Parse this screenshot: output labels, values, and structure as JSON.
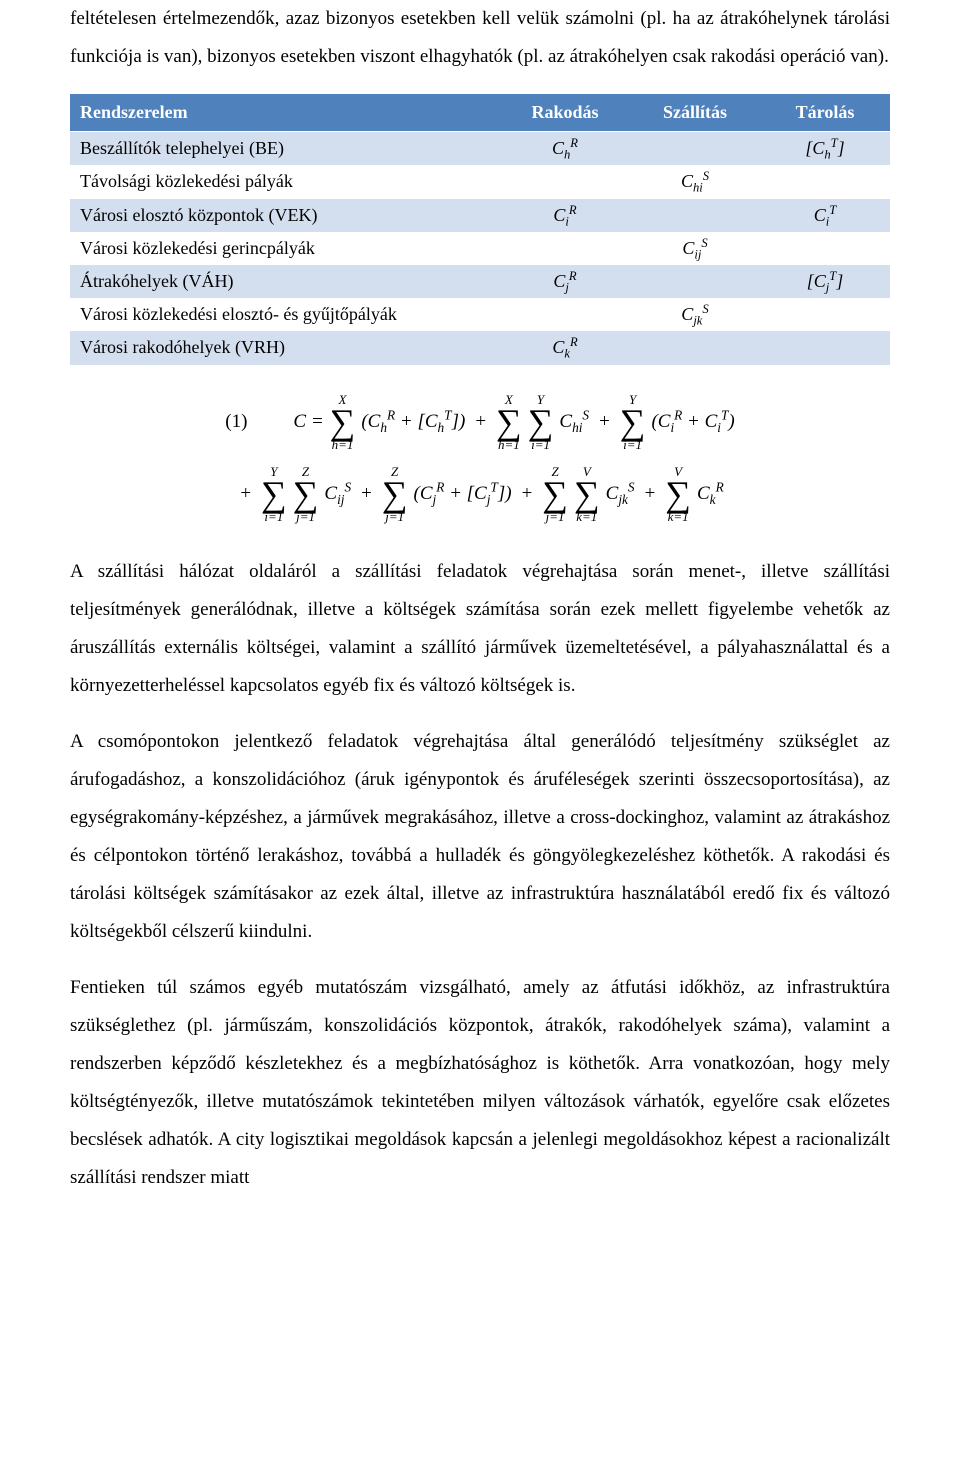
{
  "intro_paragraph": "feltételesen értelmezendők, azaz bizonyos esetekben kell velük számolni (pl. ha az átrakóhelynek tárolási funkciója is van), bizonyos esetekben viszont elhagyhatók (pl. az átrakóhelyen csak rakodási operáció van).",
  "table": {
    "headers": {
      "col0": "Rendszerelem",
      "col1": "Rakodás",
      "col2": "Szállítás",
      "col3": "Tárolás"
    },
    "rows": [
      {
        "label": "Beszállítók telephelyei (BE)",
        "rak": "C_h^R",
        "szall": "",
        "tar": "[C_h^T]"
      },
      {
        "label": "Távolsági közlekedési pályák",
        "rak": "",
        "szall": "C_hi^S",
        "tar": ""
      },
      {
        "label": "Városi elosztó központok (VEK)",
        "rak": "C_i^R",
        "szall": "",
        "tar": "C_i^T"
      },
      {
        "label": "Városi közlekedési gerincpályák",
        "rak": "",
        "szall": "C_ij^S",
        "tar": ""
      },
      {
        "label": "Átrakóhelyek (VÁH)",
        "rak": "C_j^R",
        "szall": "",
        "tar": "[C_j^T]"
      },
      {
        "label": "Városi közlekedési elosztó- és gyűjtőpályák",
        "rak": "",
        "szall": "C_jk^S",
        "tar": ""
      },
      {
        "label": "Városi rakodóhelyek (VRH)",
        "rak": "C_k^R",
        "szall": "",
        "tar": ""
      }
    ]
  },
  "formula": {
    "label": "(1)",
    "line1": {
      "lead": "C =",
      "s1_top": "X",
      "s1_bot": "h=1",
      "t1": "(C_h^R + [C_h^T])",
      "s2a_top": "X",
      "s2a_bot": "h=1",
      "s2b_top": "Y",
      "s2b_bot": "i=1",
      "t2": "C_hi^S",
      "s3_top": "Y",
      "s3_bot": "i=1",
      "t3": "(C_i^R + C_i^T)"
    },
    "line2": {
      "s4a_top": "Y",
      "s4a_bot": "i=1",
      "s4b_top": "Z",
      "s4b_bot": "j=1",
      "t4": "C_ij^S",
      "s5_top": "Z",
      "s5_bot": "j=1",
      "t5": "(C_j^R + [C_j^T])",
      "s6a_top": "Z",
      "s6a_bot": "j=1",
      "s6b_top": "V",
      "s6b_bot": "k=1",
      "t6": "C_jk^S",
      "s7_top": "V",
      "s7_bot": "k=1",
      "t7": "C_k^R"
    }
  },
  "para2": "A szállítási hálózat oldaláról a szállítási feladatok végrehajtása során menet-, illetve szállítási teljesítmények generálódnak, illetve a költségek számítása során ezek mellett figyelembe vehetők az áruszállítás externális költségei, valamint a szállító járművek üzemeltetésével, a pályahasználattal és a környezetterheléssel kapcsolatos egyéb fix és változó költségek is.",
  "para3": "A csomópontokon jelentkező feladatok végrehajtása által generálódó teljesítmény szükséglet az árufogadáshoz, a konszolidációhoz (áruk igénypontok és áruféleségek szerinti összecsoportosítása), az egységrakomány-képzéshez, a járművek megrakásához, illetve a cross-dockinghoz, valamint az átrakáshoz és célpontokon történő lerakáshoz, továbbá a hulladék és göngyölegkezeléshez köthetők. A rakodási és tárolási költségek számításakor az ezek által, illetve az infrastruktúra használatából eredő fix és változó költségekből célszerű kiindulni.",
  "para4": "Fentieken túl számos egyéb mutatószám vizsgálható, amely az átfutási időkhöz, az infrastruktúra szükséglethez (pl. járműszám, konszolidációs központok, átrakók, rakodóhelyek száma), valamint a rendszerben képződő készletekhez és a megbízhatósághoz is köthetők. Arra vonatkozóan, hogy mely költségtényezők, illetve mutatószámok tekintetében milyen változások várhatók, egyelőre csak előzetes becslések adhatók. A city logisztikai megoldások kapcsán a jelenlegi megoldásokhoz képest a racionalizált szállítási rendszer miatt"
}
